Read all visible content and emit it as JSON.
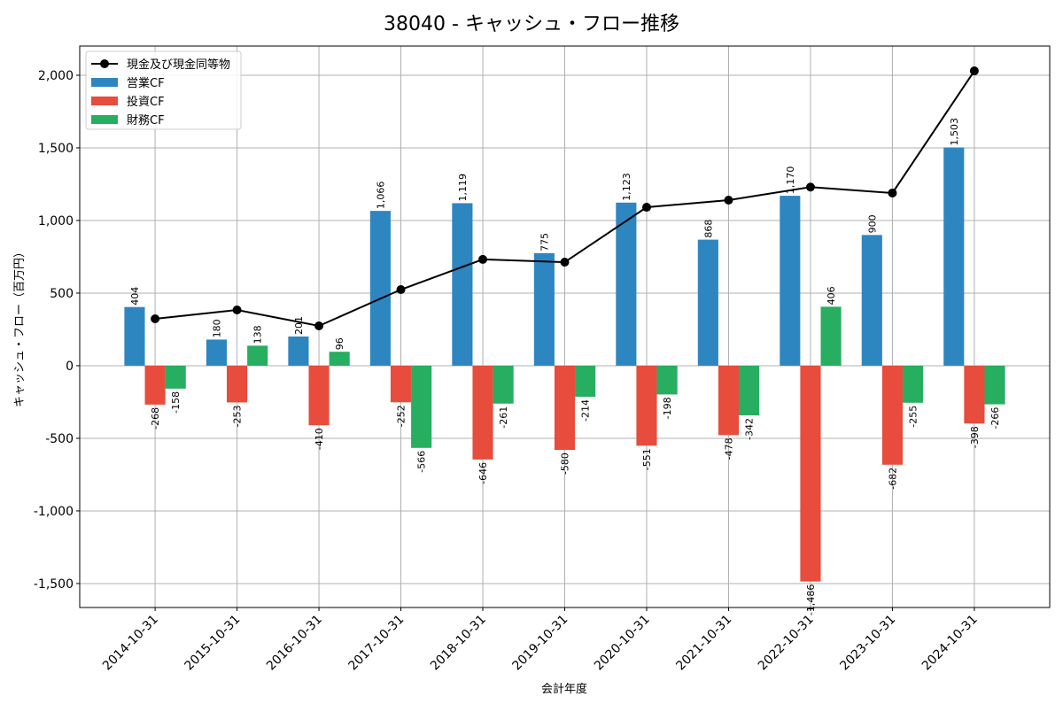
{
  "chart_data": {
    "type": "bar",
    "title": "38040 - キャッシュ・フロー推移",
    "xlabel": "会計年度",
    "ylabel": "キャッシュ・フロー（百万円）",
    "ylim": [
      -1665,
      2201
    ],
    "yticks": [
      -1500,
      -1000,
      -500,
      0,
      500,
      1000,
      1500,
      2000
    ],
    "ytick_labels": [
      "-1,500",
      "-1,000",
      "-500",
      "0",
      "500",
      "1,000",
      "1,500",
      "2,000"
    ],
    "grid": true,
    "legend_position": "top-left",
    "categories": [
      "2014-10-31",
      "2015-10-31",
      "2016-10-31",
      "2017-10-31",
      "2018-10-31",
      "2019-10-31",
      "2020-10-31",
      "2021-10-31",
      "2022-10-31",
      "2023-10-31",
      "2024-10-31"
    ],
    "series": [
      {
        "name": "営業CF",
        "kind": "bar",
        "color": "#2e86c1",
        "values": [
          404,
          180,
          201,
          1066,
          1119,
          775,
          1123,
          868,
          1170,
          900,
          1503
        ],
        "labels": [
          "404",
          "180",
          "201",
          "1,066",
          "1,119",
          "775",
          "1,123",
          "868",
          "1,170",
          "900",
          "1,503"
        ]
      },
      {
        "name": "投資CF",
        "kind": "bar",
        "color": "#e74c3c",
        "values": [
          -268,
          -253,
          -410,
          -252,
          -646,
          -580,
          -551,
          -478,
          -1486,
          -682,
          -398
        ],
        "labels": [
          "-268",
          "-253",
          "-410",
          "-252",
          "-646",
          "-580",
          "-551",
          "-478",
          "-1,486",
          "-682",
          "-398"
        ]
      },
      {
        "name": "財務CF",
        "kind": "bar",
        "color": "#27ae60",
        "values": [
          -158,
          138,
          96,
          -566,
          -261,
          -214,
          -198,
          -342,
          406,
          -255,
          -266
        ],
        "labels": [
          "-158",
          "138",
          "96",
          "-566",
          "-261",
          "-214",
          "-198",
          "-342",
          "406",
          "-255",
          "-266"
        ]
      },
      {
        "name": "現金及び現金同等物",
        "kind": "line",
        "color": "#000000",
        "values": [
          323,
          384,
          274,
          524,
          732,
          713,
          1091,
          1140,
          1230,
          1189,
          2030
        ]
      }
    ]
  }
}
